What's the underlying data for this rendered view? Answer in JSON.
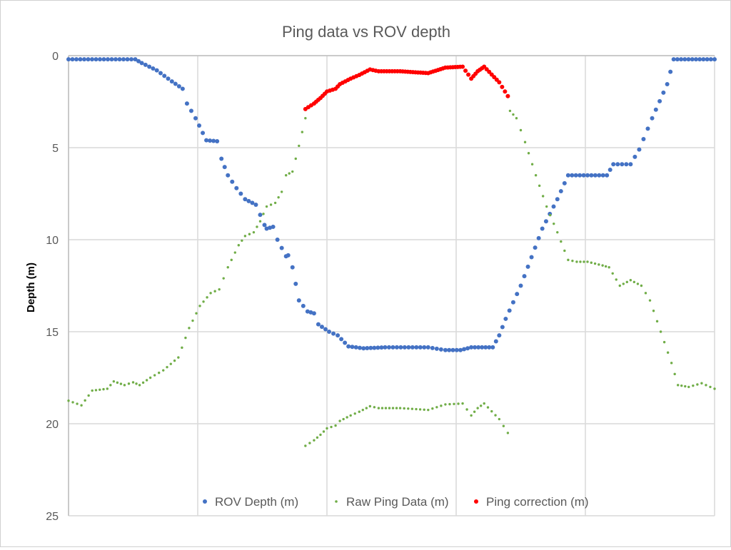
{
  "chart_data": {
    "type": "scatter",
    "title": "Ping data vs ROV depth",
    "xlabel": "",
    "ylabel": "Depth (m)",
    "xlim": [
      0,
      300
    ],
    "ylim": [
      0,
      25
    ],
    "y_inverted": true,
    "y_ticks": [
      "0",
      "5",
      "10",
      "15",
      "20",
      "25"
    ],
    "x_grid_divisions": 5,
    "grid": true,
    "legend_position": "bottom-inside",
    "series": [
      {
        "name": "ROV Depth (m)",
        "color": "#4472C4",
        "points": [
          [
            0,
            0.2
          ],
          [
            31,
            0.2
          ],
          [
            34,
            0.4
          ],
          [
            41,
            0.8
          ],
          [
            48,
            1.4
          ],
          [
            53,
            1.8
          ],
          [
            55,
            2.6
          ],
          [
            59,
            3.4
          ],
          [
            64,
            4.6
          ],
          [
            69,
            4.65
          ],
          [
            71,
            5.6
          ],
          [
            74,
            6.5
          ],
          [
            78,
            7.2
          ],
          [
            82,
            7.8
          ],
          [
            87,
            8.1
          ],
          [
            91,
            9.2
          ],
          [
            92,
            9.4
          ],
          [
            95,
            9.3
          ],
          [
            97,
            10
          ],
          [
            101,
            10.9
          ],
          [
            102,
            10.85
          ],
          [
            104,
            11.5
          ],
          [
            107,
            13.3
          ],
          [
            111,
            13.9
          ],
          [
            114,
            14
          ],
          [
            116,
            14.6
          ],
          [
            121,
            15
          ],
          [
            125,
            15.2
          ],
          [
            130,
            15.8
          ],
          [
            137,
            15.9
          ],
          [
            147,
            15.85
          ],
          [
            167,
            15.85
          ],
          [
            175,
            16
          ],
          [
            182,
            16
          ],
          [
            187,
            15.85
          ],
          [
            197,
            15.85
          ],
          [
            200,
            15.2
          ],
          [
            203,
            14.3
          ],
          [
            210,
            12.5
          ],
          [
            220,
            9.4
          ],
          [
            227,
            7.8
          ],
          [
            232,
            6.5
          ],
          [
            250,
            6.5
          ],
          [
            253,
            5.9
          ],
          [
            261,
            5.9
          ],
          [
            265,
            5.1
          ],
          [
            271,
            3.4
          ],
          [
            278,
            1.55
          ],
          [
            281,
            0.2
          ],
          [
            300,
            0.2
          ]
        ]
      },
      {
        "name": "Raw Ping Data (m)",
        "color": "#70AD47",
        "segments": [
          [
            [
              0,
              18.75
            ],
            [
              6,
              19
            ],
            [
              11,
              18.2
            ],
            [
              18,
              18.1
            ],
            [
              21,
              17.7
            ],
            [
              26,
              17.9
            ],
            [
              30,
              17.75
            ],
            [
              33,
              17.9
            ],
            [
              38,
              17.5
            ],
            [
              44,
              17.1
            ],
            [
              51,
              16.4
            ],
            [
              56,
              14.8
            ],
            [
              61,
              13.6
            ],
            [
              66,
              12.9
            ],
            [
              70,
              12.7
            ],
            [
              74,
              11.5
            ],
            [
              79,
              10.3
            ],
            [
              82,
              9.8
            ],
            [
              86,
              9.6
            ],
            [
              89,
              9
            ],
            [
              92,
              8.2
            ],
            [
              96,
              8
            ],
            [
              99,
              7.4
            ],
            [
              101,
              6.5
            ],
            [
              104,
              6.3
            ],
            [
              107,
              4.9
            ],
            [
              110,
              3.4
            ]
          ],
          [
            [
              110,
              21.2
            ],
            [
              114,
              20.9
            ],
            [
              117,
              20.6
            ],
            [
              120,
              20.25
            ],
            [
              124,
              20.1
            ],
            [
              126,
              19.85
            ],
            [
              131,
              19.55
            ],
            [
              135,
              19.35
            ],
            [
              140,
              19.05
            ],
            [
              144,
              19.15
            ],
            [
              154,
              19.15
            ],
            [
              167,
              19.25
            ],
            [
              175,
              18.95
            ],
            [
              183,
              18.9
            ],
            [
              187,
              19.55
            ],
            [
              190,
              19.15
            ],
            [
              193,
              18.9
            ],
            [
              200,
              19.75
            ],
            [
              204,
              20.5
            ]
          ],
          [
            [
              205,
              3.0
            ],
            [
              208,
              3.4
            ],
            [
              212,
              4.7
            ],
            [
              217,
              6.5
            ],
            [
              222,
              8.2
            ],
            [
              227,
              9.6
            ],
            [
              232,
              11.1
            ],
            [
              236,
              11.2
            ],
            [
              241,
              11.2
            ],
            [
              248,
              11.4
            ],
            [
              251,
              11.5
            ],
            [
              256,
              12.5
            ],
            [
              261,
              12.2
            ],
            [
              266,
              12.5
            ],
            [
              270,
              13.3
            ],
            [
              275,
              15
            ],
            [
              280,
              16.7
            ],
            [
              283,
              17.9
            ],
            [
              288,
              18
            ],
            [
              294,
              17.8
            ],
            [
              300,
              18.1
            ]
          ]
        ]
      },
      {
        "name": "Ping correction (m)",
        "color": "#FF0000",
        "points": [
          [
            110,
            2.9
          ],
          [
            114,
            2.6
          ],
          [
            117,
            2.3
          ],
          [
            120,
            1.95
          ],
          [
            124,
            1.8
          ],
          [
            126,
            1.55
          ],
          [
            131,
            1.25
          ],
          [
            135,
            1.05
          ],
          [
            140,
            0.75
          ],
          [
            144,
            0.85
          ],
          [
            154,
            0.85
          ],
          [
            167,
            0.95
          ],
          [
            175,
            0.65
          ],
          [
            183,
            0.6
          ],
          [
            187,
            1.25
          ],
          [
            190,
            0.85
          ],
          [
            193,
            0.6
          ],
          [
            200,
            1.45
          ],
          [
            204,
            2.2
          ]
        ]
      }
    ]
  }
}
